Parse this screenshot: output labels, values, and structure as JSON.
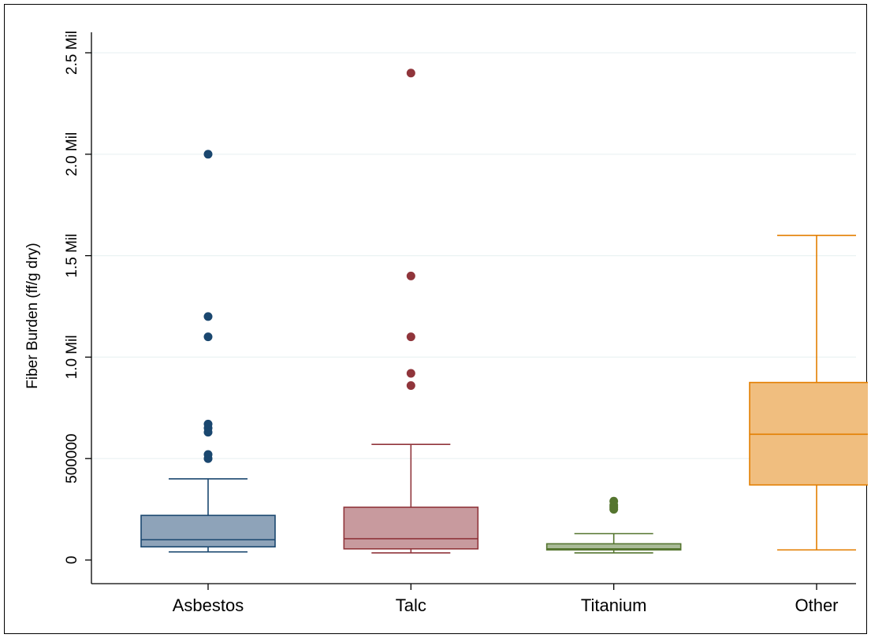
{
  "chart_data": {
    "type": "box",
    "title": "",
    "xlabel": "",
    "ylabel": "Fiber Burden (ff/g dry)",
    "ylim": [
      -50000,
      2600000
    ],
    "grid": true,
    "legend": "none",
    "y_ticks": [
      {
        "value": 0,
        "label": "0"
      },
      {
        "value": 500000,
        "label": "500000"
      },
      {
        "value": 1000000,
        "label": "1.0 Mil"
      },
      {
        "value": 1500000,
        "label": "1.5 Mil"
      },
      {
        "value": 2000000,
        "label": "2.0 Mil"
      },
      {
        "value": 2500000,
        "label": "2.5 Mil"
      }
    ],
    "categories": [
      "Asbestos",
      "Talc",
      "Titanium",
      "Other"
    ],
    "series": [
      {
        "category": "Asbestos",
        "color": "#1a476f",
        "fill": "#8ea3b9",
        "whisker_low": 40000,
        "q1": 65000,
        "median": 100000,
        "q3": 220000,
        "whisker_high": 400000,
        "outliers": [
          500000,
          520000,
          630000,
          650000,
          670000,
          1100000,
          1200000,
          2000000
        ]
      },
      {
        "category": "Talc",
        "color": "#90353b",
        "fill": "#c89a9e",
        "whisker_low": 35000,
        "q1": 55000,
        "median": 105000,
        "q3": 260000,
        "whisker_high": 570000,
        "outliers": [
          860000,
          920000,
          1100000,
          1400000,
          2400000
        ]
      },
      {
        "category": "Titanium",
        "color": "#55752f",
        "fill": "#aabb98",
        "whisker_low": 35000,
        "q1": 50000,
        "median": 55000,
        "q3": 80000,
        "whisker_high": 130000,
        "outliers": [
          250000,
          260000,
          270000,
          290000
        ]
      },
      {
        "category": "Other",
        "color": "#e37e00",
        "fill": "#f0be7f",
        "whisker_low": 50000,
        "q1": 370000,
        "median": 620000,
        "q3": 875000,
        "whisker_high": 1600000,
        "outliers": []
      }
    ]
  }
}
